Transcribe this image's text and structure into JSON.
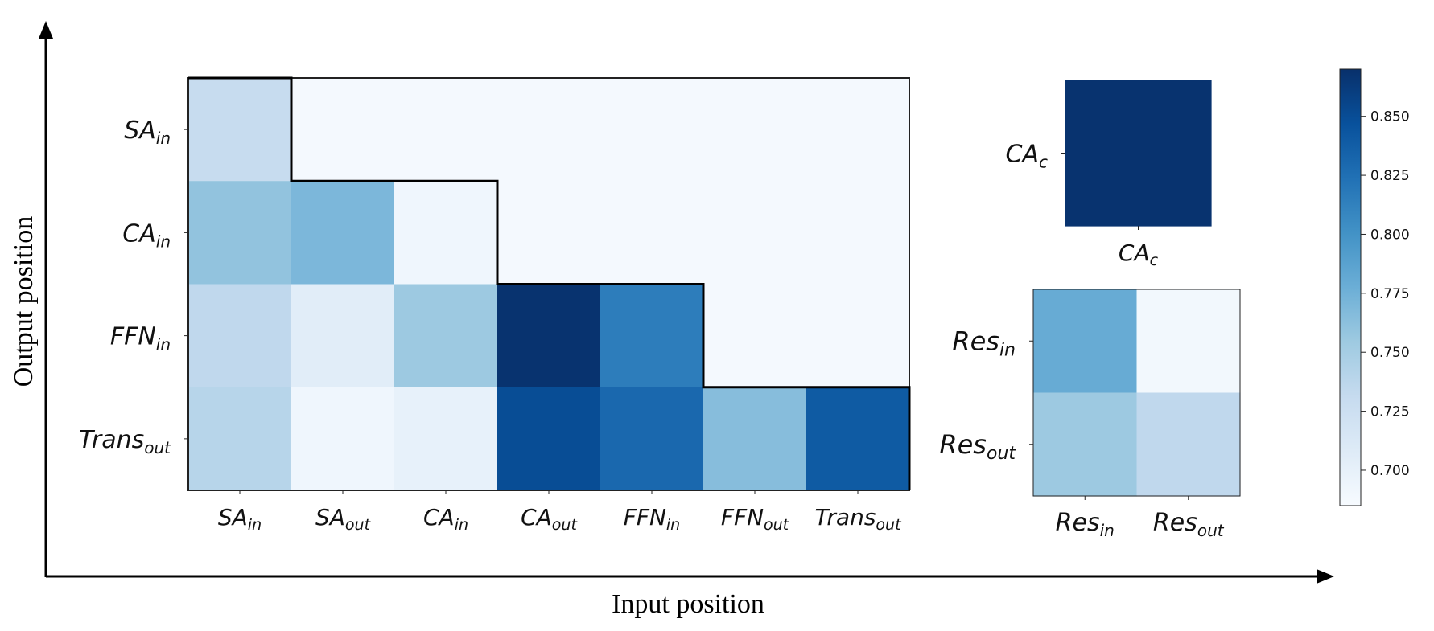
{
  "axes": {
    "xlabel": "Input position",
    "ylabel": "Output position"
  },
  "chart_data": [
    {
      "type": "heatmap",
      "x_labels": [
        {
          "base": "SA",
          "sub": "in"
        },
        {
          "base": "SA",
          "sub": "out"
        },
        {
          "base": "CA",
          "sub": "in"
        },
        {
          "base": "CA",
          "sub": "out"
        },
        {
          "base": "FFN",
          "sub": "in"
        },
        {
          "base": "FFN",
          "sub": "out"
        },
        {
          "base": "Trans",
          "sub": "out"
        }
      ],
      "y_labels": [
        {
          "base": "SA",
          "sub": "in"
        },
        {
          "base": "CA",
          "sub": "in"
        },
        {
          "base": "FFN",
          "sub": "in"
        },
        {
          "base": "Trans",
          "sub": "out"
        }
      ],
      "values": [
        [
          0.73,
          0.688,
          0.688,
          0.688,
          0.688,
          0.688,
          0.688
        ],
        [
          0.76,
          0.77,
          0.692,
          0.688,
          0.688,
          0.688,
          0.688
        ],
        [
          0.735,
          0.705,
          0.755,
          0.868,
          0.815,
          0.688,
          0.688
        ],
        [
          0.74,
          0.692,
          0.7,
          0.85,
          0.83,
          0.765,
          0.84
        ]
      ],
      "staircase_boundary": true
    },
    {
      "type": "heatmap",
      "x_labels": [
        {
          "base": "CA",
          "sub": "c"
        }
      ],
      "y_labels": [
        {
          "base": "CA",
          "sub": "c"
        }
      ],
      "values": [
        [
          0.868
        ]
      ]
    },
    {
      "type": "heatmap",
      "x_labels": [
        {
          "base": "Res",
          "sub": "in"
        },
        {
          "base": "Res",
          "sub": "out"
        }
      ],
      "y_labels": [
        {
          "base": "Res",
          "sub": "in"
        },
        {
          "base": "Res",
          "sub": "out"
        }
      ],
      "values": [
        [
          0.78,
          0.69
        ],
        [
          0.755,
          0.735
        ]
      ]
    }
  ],
  "colorbar": {
    "colormap": "Blues",
    "vmin": 0.685,
    "vmax": 0.87,
    "ticks": [
      "0.700",
      "0.725",
      "0.750",
      "0.775",
      "0.800",
      "0.825",
      "0.850"
    ]
  }
}
